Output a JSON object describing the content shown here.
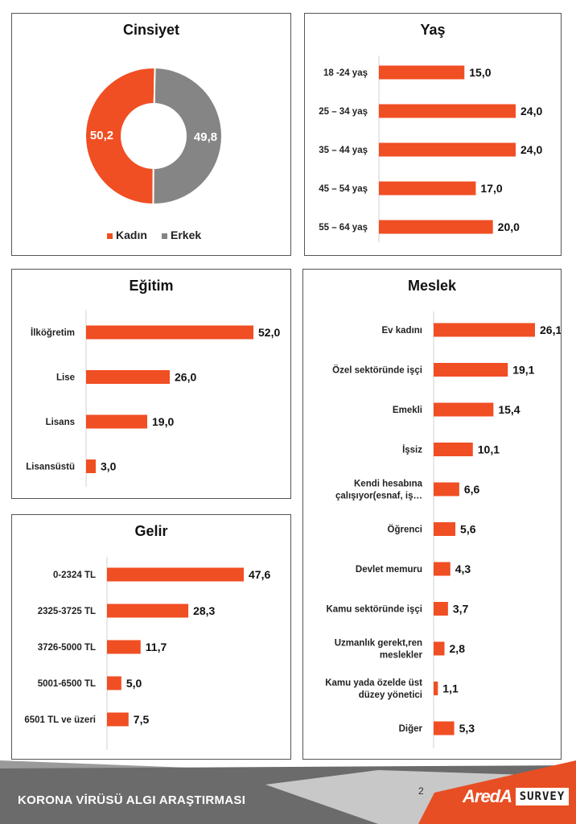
{
  "colors": {
    "bar": "#f04e23",
    "grey": "#858585",
    "axis": "#d0d0d0"
  },
  "footer": {
    "title": "KORONA VİRÜSÜ ALGI ARAŞTIRMASI",
    "page": "2",
    "logo_text": "AredA",
    "logo_badge": "SURVEY"
  },
  "chart_data": [
    {
      "id": "cinsiyet",
      "type": "pie",
      "title": "Cinsiyet",
      "labels": [
        "Kadın",
        "Erkek"
      ],
      "values": [
        50.2,
        49.8
      ],
      "value_labels": [
        "50,2",
        "49,8"
      ],
      "legend": "bottom"
    },
    {
      "id": "yas",
      "type": "bar",
      "orientation": "horizontal",
      "title": "Yaş",
      "categories": [
        "18 -24 yaş",
        "25 – 34 yaş",
        "35 – 44 yaş",
        "45 – 54 yaş",
        "55 – 64 yaş"
      ],
      "values": [
        15.0,
        24.0,
        24.0,
        17.0,
        20.0
      ],
      "value_labels": [
        "15,0",
        "24,0",
        "24,0",
        "17,0",
        "20,0"
      ],
      "xmax": 24.0
    },
    {
      "id": "egitim",
      "type": "bar",
      "orientation": "horizontal",
      "title": "Eğitim",
      "categories": [
        "İlköğretim",
        "Lise",
        "Lisans",
        "Lisansüstü"
      ],
      "values": [
        52.0,
        26.0,
        19.0,
        3.0
      ],
      "value_labels": [
        "52,0",
        "26,0",
        "19,0",
        "3,0"
      ],
      "xmax": 52.0
    },
    {
      "id": "gelir",
      "type": "bar",
      "orientation": "horizontal",
      "title": "Gelir",
      "categories": [
        "0-2324 TL",
        "2325-3725 TL",
        "3726-5000 TL",
        "5001-6500 TL",
        "6501 TL ve üzeri"
      ],
      "values": [
        47.6,
        28.3,
        11.7,
        5.0,
        7.5
      ],
      "value_labels": [
        "47,6",
        "28,3",
        "11,7",
        "5,0",
        "7,5"
      ],
      "xmax": 47.6
    },
    {
      "id": "meslek",
      "type": "bar",
      "orientation": "horizontal",
      "title": "Meslek",
      "categories": [
        [
          "Ev kadını"
        ],
        [
          "Özel sektöründe işçi"
        ],
        [
          "Emekli"
        ],
        [
          "İşsiz"
        ],
        [
          "Kendi hesabına",
          "çalışıyor(esnaf, iş…"
        ],
        [
          "Öğrenci"
        ],
        [
          "Devlet memuru"
        ],
        [
          "Kamu sektöründe işçi"
        ],
        [
          "Uzmanlık gerekt,ren",
          "meslekler"
        ],
        [
          "Kamu yada özelde üst",
          "düzey yönetici"
        ],
        [
          "Diğer"
        ]
      ],
      "values": [
        26.1,
        19.1,
        15.4,
        10.1,
        6.6,
        5.6,
        4.3,
        3.7,
        2.8,
        1.1,
        5.3
      ],
      "value_labels": [
        "26,1",
        "19,1",
        "15,4",
        "10,1",
        "6,6",
        "5,6",
        "4,3",
        "3,7",
        "2,8",
        "1,1",
        "5,3"
      ],
      "xmax": 26.1
    }
  ]
}
